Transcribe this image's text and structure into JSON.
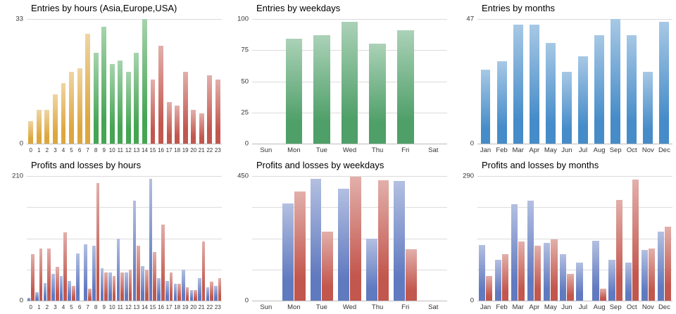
{
  "page": {
    "background": "#ffffff"
  },
  "colors": {
    "entries_hours_morning": "#dba233",
    "entries_hours_midday": "#3ba04a",
    "entries_hours_evening": "#bf4e44",
    "entries_weekdays": "#459a60",
    "entries_months": "#3c86c6",
    "profits": "#5873bd",
    "losses": "#bf4e44",
    "gridline": "#dcdcdc"
  },
  "chart_data": [
    {
      "type": "bar",
      "title": "Entries by hours (Asia,Europe,USA)",
      "categories": [
        "0",
        "1",
        "2",
        "3",
        "4",
        "5",
        "6",
        "7",
        "8",
        "9",
        "10",
        "11",
        "12",
        "13",
        "14",
        "15",
        "16",
        "17",
        "18",
        "19",
        "20",
        "21",
        "22",
        "23"
      ],
      "values": [
        6,
        9,
        9,
        13,
        16,
        19,
        20,
        29,
        24,
        31,
        21,
        22,
        19,
        24,
        33,
        17,
        26,
        11,
        10,
        19,
        9,
        8,
        18,
        17
      ],
      "bar_colors": [
        "#dba233",
        "#dba233",
        "#dba233",
        "#dba233",
        "#dba233",
        "#dba233",
        "#dba233",
        "#dba233",
        "#3ba04a",
        "#3ba04a",
        "#3ba04a",
        "#3ba04a",
        "#3ba04a",
        "#3ba04a",
        "#3ba04a",
        "#bf4e44",
        "#bf4e44",
        "#bf4e44",
        "#bf4e44",
        "#bf4e44",
        "#bf4e44",
        "#bf4e44",
        "#bf4e44",
        "#bf4e44"
      ],
      "ylim": [
        0,
        33
      ],
      "yticks": [
        0,
        33
      ],
      "grid_divisions": 1,
      "legend": "none"
    },
    {
      "type": "bar",
      "title": "Entries by weekdays",
      "categories": [
        "Sun",
        "Mon",
        "Tue",
        "Wed",
        "Thu",
        "Fri",
        "Sat"
      ],
      "values": [
        0,
        84,
        87,
        98,
        80,
        91,
        0
      ],
      "color": "#459a60",
      "ylim": [
        0,
        100
      ],
      "yticks": [
        0,
        25,
        50,
        75,
        100
      ],
      "grid_divisions": 4,
      "legend": "none"
    },
    {
      "type": "bar",
      "title": "Entries by months",
      "categories": [
        "Jan",
        "Feb",
        "Mar",
        "Apr",
        "May",
        "Jun",
        "Jul",
        "Aug",
        "Sep",
        "Oct",
        "Nov",
        "Dec"
      ],
      "values": [
        28,
        31,
        45,
        45,
        38,
        27,
        33,
        41,
        47,
        41,
        27,
        46
      ],
      "color": "#3c86c6",
      "ylim": [
        0,
        47
      ],
      "yticks": [
        0,
        47
      ],
      "grid_divisions": 1,
      "legend": "none"
    },
    {
      "type": "bar",
      "title": "Profits and losses by hours",
      "categories": [
        "0",
        "1",
        "2",
        "3",
        "4",
        "5",
        "6",
        "7",
        "8",
        "9",
        "10",
        "11",
        "12",
        "13",
        "14",
        "15",
        "16",
        "17",
        "18",
        "19",
        "20",
        "21",
        "22",
        "23"
      ],
      "series": [
        {
          "name": "Profits",
          "color": "#5873bd",
          "values": [
            5,
            14,
            30,
            45,
            42,
            33,
            80,
            95,
            92,
            55,
            48,
            105,
            48,
            168,
            58,
            205,
            38,
            33,
            28,
            52,
            18,
            38,
            22,
            25
          ]
        },
        {
          "name": "Losses",
          "color": "#bf4e44",
          "values": [
            78,
            88,
            88,
            57,
            115,
            25,
            0,
            20,
            198,
            48,
            42,
            48,
            52,
            92,
            52,
            82,
            128,
            48,
            28,
            22,
            18,
            100,
            32,
            38
          ]
        }
      ],
      "ylim": [
        0,
        210
      ],
      "yticks": [
        0,
        210
      ],
      "grid_divisions": 4,
      "legend": "none"
    },
    {
      "type": "bar",
      "title": "Profits and losses by weekdays",
      "categories": [
        "Sun",
        "Mon",
        "Tue",
        "Wed",
        "Thu",
        "Fri",
        "Sat"
      ],
      "series": [
        {
          "name": "Profits",
          "color": "#5873bd",
          "values": [
            0,
            350,
            440,
            405,
            225,
            432,
            0
          ]
        },
        {
          "name": "Losses",
          "color": "#bf4e44",
          "values": [
            0,
            395,
            250,
            447,
            435,
            185,
            0
          ]
        }
      ],
      "ylim": [
        0,
        450
      ],
      "yticks": [
        0,
        450
      ],
      "grid_divisions": 4,
      "legend": "none"
    },
    {
      "type": "bar",
      "title": "Profits and losses by months",
      "categories": [
        "Jan",
        "Feb",
        "Mar",
        "Apr",
        "May",
        "Jun",
        "Jul",
        "Aug",
        "Sep",
        "Oct",
        "Nov",
        "Dec"
      ],
      "series": [
        {
          "name": "Profits",
          "color": "#5873bd",
          "values": [
            130,
            95,
            225,
            232,
            135,
            108,
            88,
            140,
            95,
            88,
            118,
            160
          ]
        },
        {
          "name": "Losses",
          "color": "#bf4e44",
          "values": [
            58,
            108,
            138,
            128,
            142,
            62,
            0,
            28,
            235,
            282,
            122,
            172
          ]
        }
      ],
      "ylim": [
        0,
        290
      ],
      "yticks": [
        0,
        290
      ],
      "grid_divisions": 4,
      "legend": "none"
    }
  ]
}
